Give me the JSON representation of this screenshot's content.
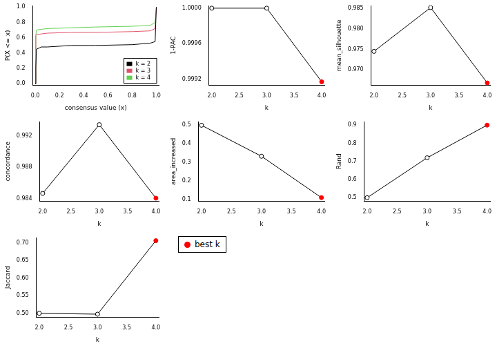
{
  "chart_data": [
    {
      "type": "line",
      "x_label": "consensus value (x)",
      "y_label": "P(X <= x)",
      "x": [
        0,
        0.005,
        0.01,
        0.05,
        0.1,
        0.3,
        0.5,
        0.8,
        0.95,
        0.99,
        1.0
      ],
      "series": [
        {
          "name": "k = 2",
          "color": "#000000",
          "values": [
            0,
            0.22,
            0.45,
            0.48,
            0.48,
            0.5,
            0.5,
            0.51,
            0.53,
            0.55,
            1.0
          ]
        },
        {
          "name": "k = 3",
          "color": "#df536b",
          "values": [
            0,
            0.63,
            0.64,
            0.65,
            0.66,
            0.67,
            0.67,
            0.68,
            0.69,
            0.72,
            1.0
          ]
        },
        {
          "name": "k = 4",
          "color": "#61d04f",
          "values": [
            0,
            0.63,
            0.7,
            0.71,
            0.72,
            0.73,
            0.74,
            0.75,
            0.76,
            0.8,
            1.0
          ]
        }
      ],
      "xlim": [
        -0.02,
        1.02
      ],
      "ylim": [
        -0.02,
        1.02
      ],
      "xticks": [
        {
          "value": 0,
          "label": "0.0"
        },
        0.2,
        0.4,
        0.6,
        0.8,
        {
          "value": 1,
          "label": "1.0"
        }
      ],
      "yticks": [
        {
          "value": 0,
          "label": "0.0"
        },
        0.2,
        0.4,
        0.6,
        0.8,
        {
          "value": 1,
          "label": "1.0"
        }
      ],
      "grid": false,
      "legend": "bottom-right"
    },
    {
      "type": "line",
      "x_label": "k",
      "y_label": "1-PAC",
      "x": [
        2,
        3,
        4
      ],
      "series": [
        {
          "name": "1-PAC",
          "color": "#000000",
          "marker": "circle",
          "colors": [
            "#ffffff",
            "#ffffff",
            "#ff0000"
          ],
          "values": [
            1.0,
            1.0,
            0.99917
          ]
        }
      ],
      "xlim": [
        1.95,
        4.05
      ],
      "ylim": [
        0.99913,
        1.00003
      ],
      "xticks": [
        {
          "value": 2,
          "label": "2.0"
        },
        2.5,
        {
          "value": 3,
          "label": "3.0"
        },
        3.5,
        {
          "value": 4,
          "label": "4.0"
        }
      ],
      "yticks": [
        0.9992,
        0.9996,
        {
          "value": 1,
          "label": "1.0000"
        }
      ],
      "grid": false
    },
    {
      "type": "line",
      "x_label": "k",
      "y_label": "mean_silhouette",
      "x": [
        2,
        3,
        4
      ],
      "series": [
        {
          "name": "mean_silhouette",
          "color": "#000000",
          "marker": "circle",
          "colors": [
            "#ffffff",
            "#ffffff",
            "#ff0000"
          ],
          "values": [
            0.9745,
            0.9852,
            0.9668
          ]
        }
      ],
      "xlim": [
        1.95,
        4.05
      ],
      "ylim": [
        0.9662,
        0.9857
      ],
      "xticks": [
        {
          "value": 2,
          "label": "2.0"
        },
        2.5,
        {
          "value": 3,
          "label": "3.0"
        },
        3.5,
        {
          "value": 4,
          "label": "4.0"
        }
      ],
      "yticks": [
        {
          "value": 0.97,
          "label": "0.970"
        },
        0.975,
        {
          "value": 0.98,
          "label": "0.980"
        },
        0.985
      ],
      "grid": false
    },
    {
      "type": "line",
      "x_label": "k",
      "y_label": "concordance",
      "x": [
        2,
        3,
        4
      ],
      "series": [
        {
          "name": "concordance",
          "color": "#000000",
          "marker": "circle",
          "colors": [
            "#ffffff",
            "#ffffff",
            "#ff0000"
          ],
          "values": [
            0.9847,
            0.9934,
            0.9841
          ]
        }
      ],
      "xlim": [
        1.95,
        4.05
      ],
      "ylim": [
        0.9837,
        0.9938
      ],
      "xticks": [
        {
          "value": 2,
          "label": "2.0"
        },
        2.5,
        {
          "value": 3,
          "label": "3.0"
        },
        3.5,
        {
          "value": 4,
          "label": "4.0"
        }
      ],
      "yticks": [
        0.984,
        0.988,
        0.992
      ],
      "grid": false
    },
    {
      "type": "line",
      "x_label": "k",
      "y_label": "area_increased",
      "x": [
        2,
        3,
        4
      ],
      "series": [
        {
          "name": "area_increased",
          "color": "#000000",
          "marker": "circle",
          "colors": [
            "#ffffff",
            "#ffffff",
            "#ff0000"
          ],
          "values": [
            0.5,
            0.333,
            0.11
          ]
        }
      ],
      "xlim": [
        1.95,
        4.05
      ],
      "ylim": [
        0.09,
        0.52
      ],
      "xticks": [
        {
          "value": 2,
          "label": "2.0"
        },
        2.5,
        {
          "value": 3,
          "label": "3.0"
        },
        3.5,
        {
          "value": 4,
          "label": "4.0"
        }
      ],
      "yticks": [
        0.1,
        0.2,
        0.3,
        0.4,
        0.5
      ],
      "grid": false
    },
    {
      "type": "line",
      "x_label": "k",
      "y_label": "Rand",
      "x": [
        2,
        3,
        4
      ],
      "series": [
        {
          "name": "Rand",
          "color": "#000000",
          "marker": "circle",
          "colors": [
            "#ffffff",
            "#ffffff",
            "#ff0000"
          ],
          "values": [
            0.5,
            0.72,
            0.9
          ]
        }
      ],
      "xlim": [
        1.95,
        4.05
      ],
      "ylim": [
        0.48,
        0.92
      ],
      "xticks": [
        {
          "value": 2,
          "label": "2.0"
        },
        2.5,
        {
          "value": 3,
          "label": "3.0"
        },
        3.5,
        {
          "value": 4,
          "label": "4.0"
        }
      ],
      "yticks": [
        0.5,
        0.6,
        0.7,
        0.8,
        0.9
      ],
      "grid": false
    },
    {
      "type": "line",
      "x_label": "k",
      "y_label": "Jaccard",
      "x": [
        2,
        3,
        4
      ],
      "series": [
        {
          "name": "Jaccard",
          "color": "#000000",
          "marker": "circle",
          "colors": [
            "#ffffff",
            "#ffffff",
            "#ff0000"
          ],
          "values": [
            0.4995,
            0.497,
            0.706
          ]
        }
      ],
      "xlim": [
        1.95,
        4.05
      ],
      "ylim": [
        0.488,
        0.715
      ],
      "xticks": [
        {
          "value": 2,
          "label": "2.0"
        },
        2.5,
        {
          "value": 3,
          "label": "3.0"
        },
        3.5,
        {
          "value": 4,
          "label": "4.0"
        }
      ],
      "yticks": [
        {
          "value": 0.5,
          "label": "0.50"
        },
        0.55,
        {
          "value": 0.6,
          "label": "0.60"
        },
        0.65,
        {
          "value": 0.7,
          "label": "0.70"
        }
      ],
      "grid": false
    },
    {
      "type": "legend",
      "series": [
        {
          "name": "best k",
          "color": "#ff0000",
          "marker": "circle"
        }
      ]
    }
  ]
}
